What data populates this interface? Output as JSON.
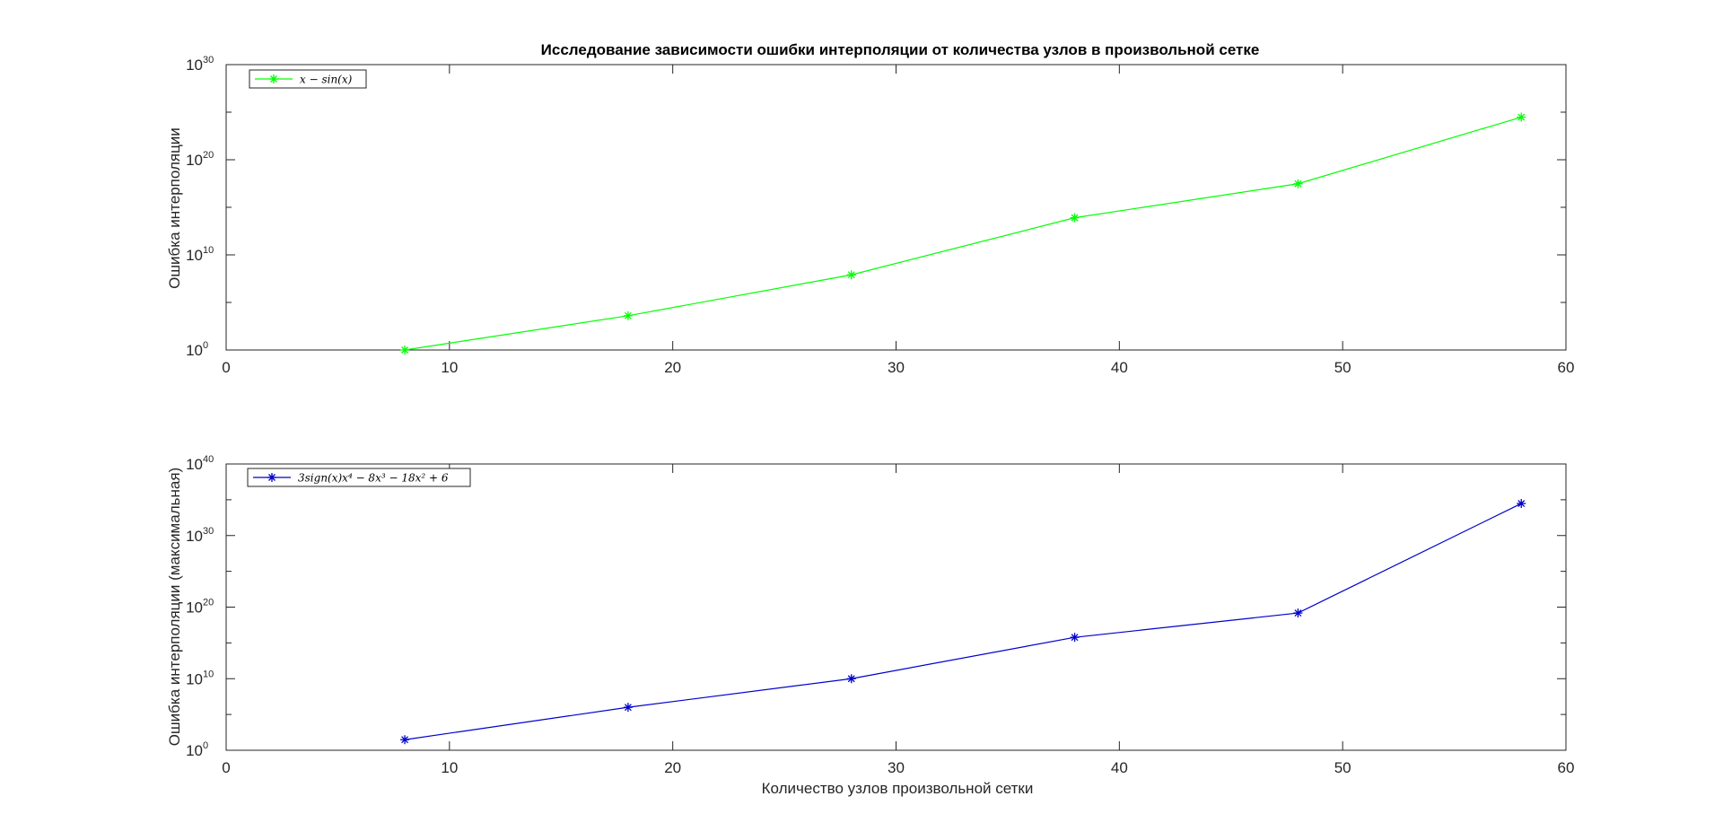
{
  "chart_data": [
    {
      "type": "line",
      "title": "Исследование зависимости ошибки интерполяции от количества узлов в произвольной сетке",
      "xlabel": "",
      "ylabel": "Ошибка интерполяции",
      "xlim": [
        0,
        60
      ],
      "ylim": [
        1,
        1e+30
      ],
      "yscale": "log",
      "xticks": [
        0,
        10,
        20,
        30,
        40,
        50,
        60
      ],
      "yticks": [
        {
          "base": "10",
          "exp": "0",
          "value": 1
        },
        {
          "base": "10",
          "exp": "10",
          "value": 10000000000.0
        },
        {
          "base": "10",
          "exp": "20",
          "value": 1e+20
        },
        {
          "base": "10",
          "exp": "30",
          "value": 1e+30
        }
      ],
      "legend_position": "top-left",
      "series": [
        {
          "name": "x − sin(x)",
          "color": "#00ff00",
          "marker": "asterisk",
          "x": [
            8,
            18,
            28,
            38,
            48,
            58
          ],
          "y": [
            1,
            4000.0,
            80000000.0,
            80000000000000.0,
            3e+17,
            3e+24
          ]
        }
      ]
    },
    {
      "type": "line",
      "title": "",
      "xlabel": "Количество узлов произвольной сетки",
      "ylabel": "Ошибка интерполяции (максимальная)",
      "xlim": [
        0,
        60
      ],
      "ylim": [
        1,
        1e+40
      ],
      "yscale": "log",
      "xticks": [
        0,
        10,
        20,
        30,
        40,
        50,
        60
      ],
      "yticks": [
        {
          "base": "10",
          "exp": "0",
          "value": 1
        },
        {
          "base": "10",
          "exp": "10",
          "value": 10000000000.0
        },
        {
          "base": "10",
          "exp": "20",
          "value": 1e+20
        },
        {
          "base": "10",
          "exp": "30",
          "value": 1e+30
        },
        {
          "base": "10",
          "exp": "40",
          "value": 1e+40
        }
      ],
      "legend_position": "top-left",
      "series": [
        {
          "name": "3sign(x)x⁴ − 8x³ − 18x² + 6",
          "color": "#0000cc",
          "marker": "asterisk",
          "x": [
            8,
            18,
            28,
            38,
            48,
            58
          ],
          "y": [
            30.0,
            1000000.0,
            10000000000.0,
            6000000000000000.0,
            1.5e+19,
            3e+34
          ]
        }
      ]
    }
  ]
}
